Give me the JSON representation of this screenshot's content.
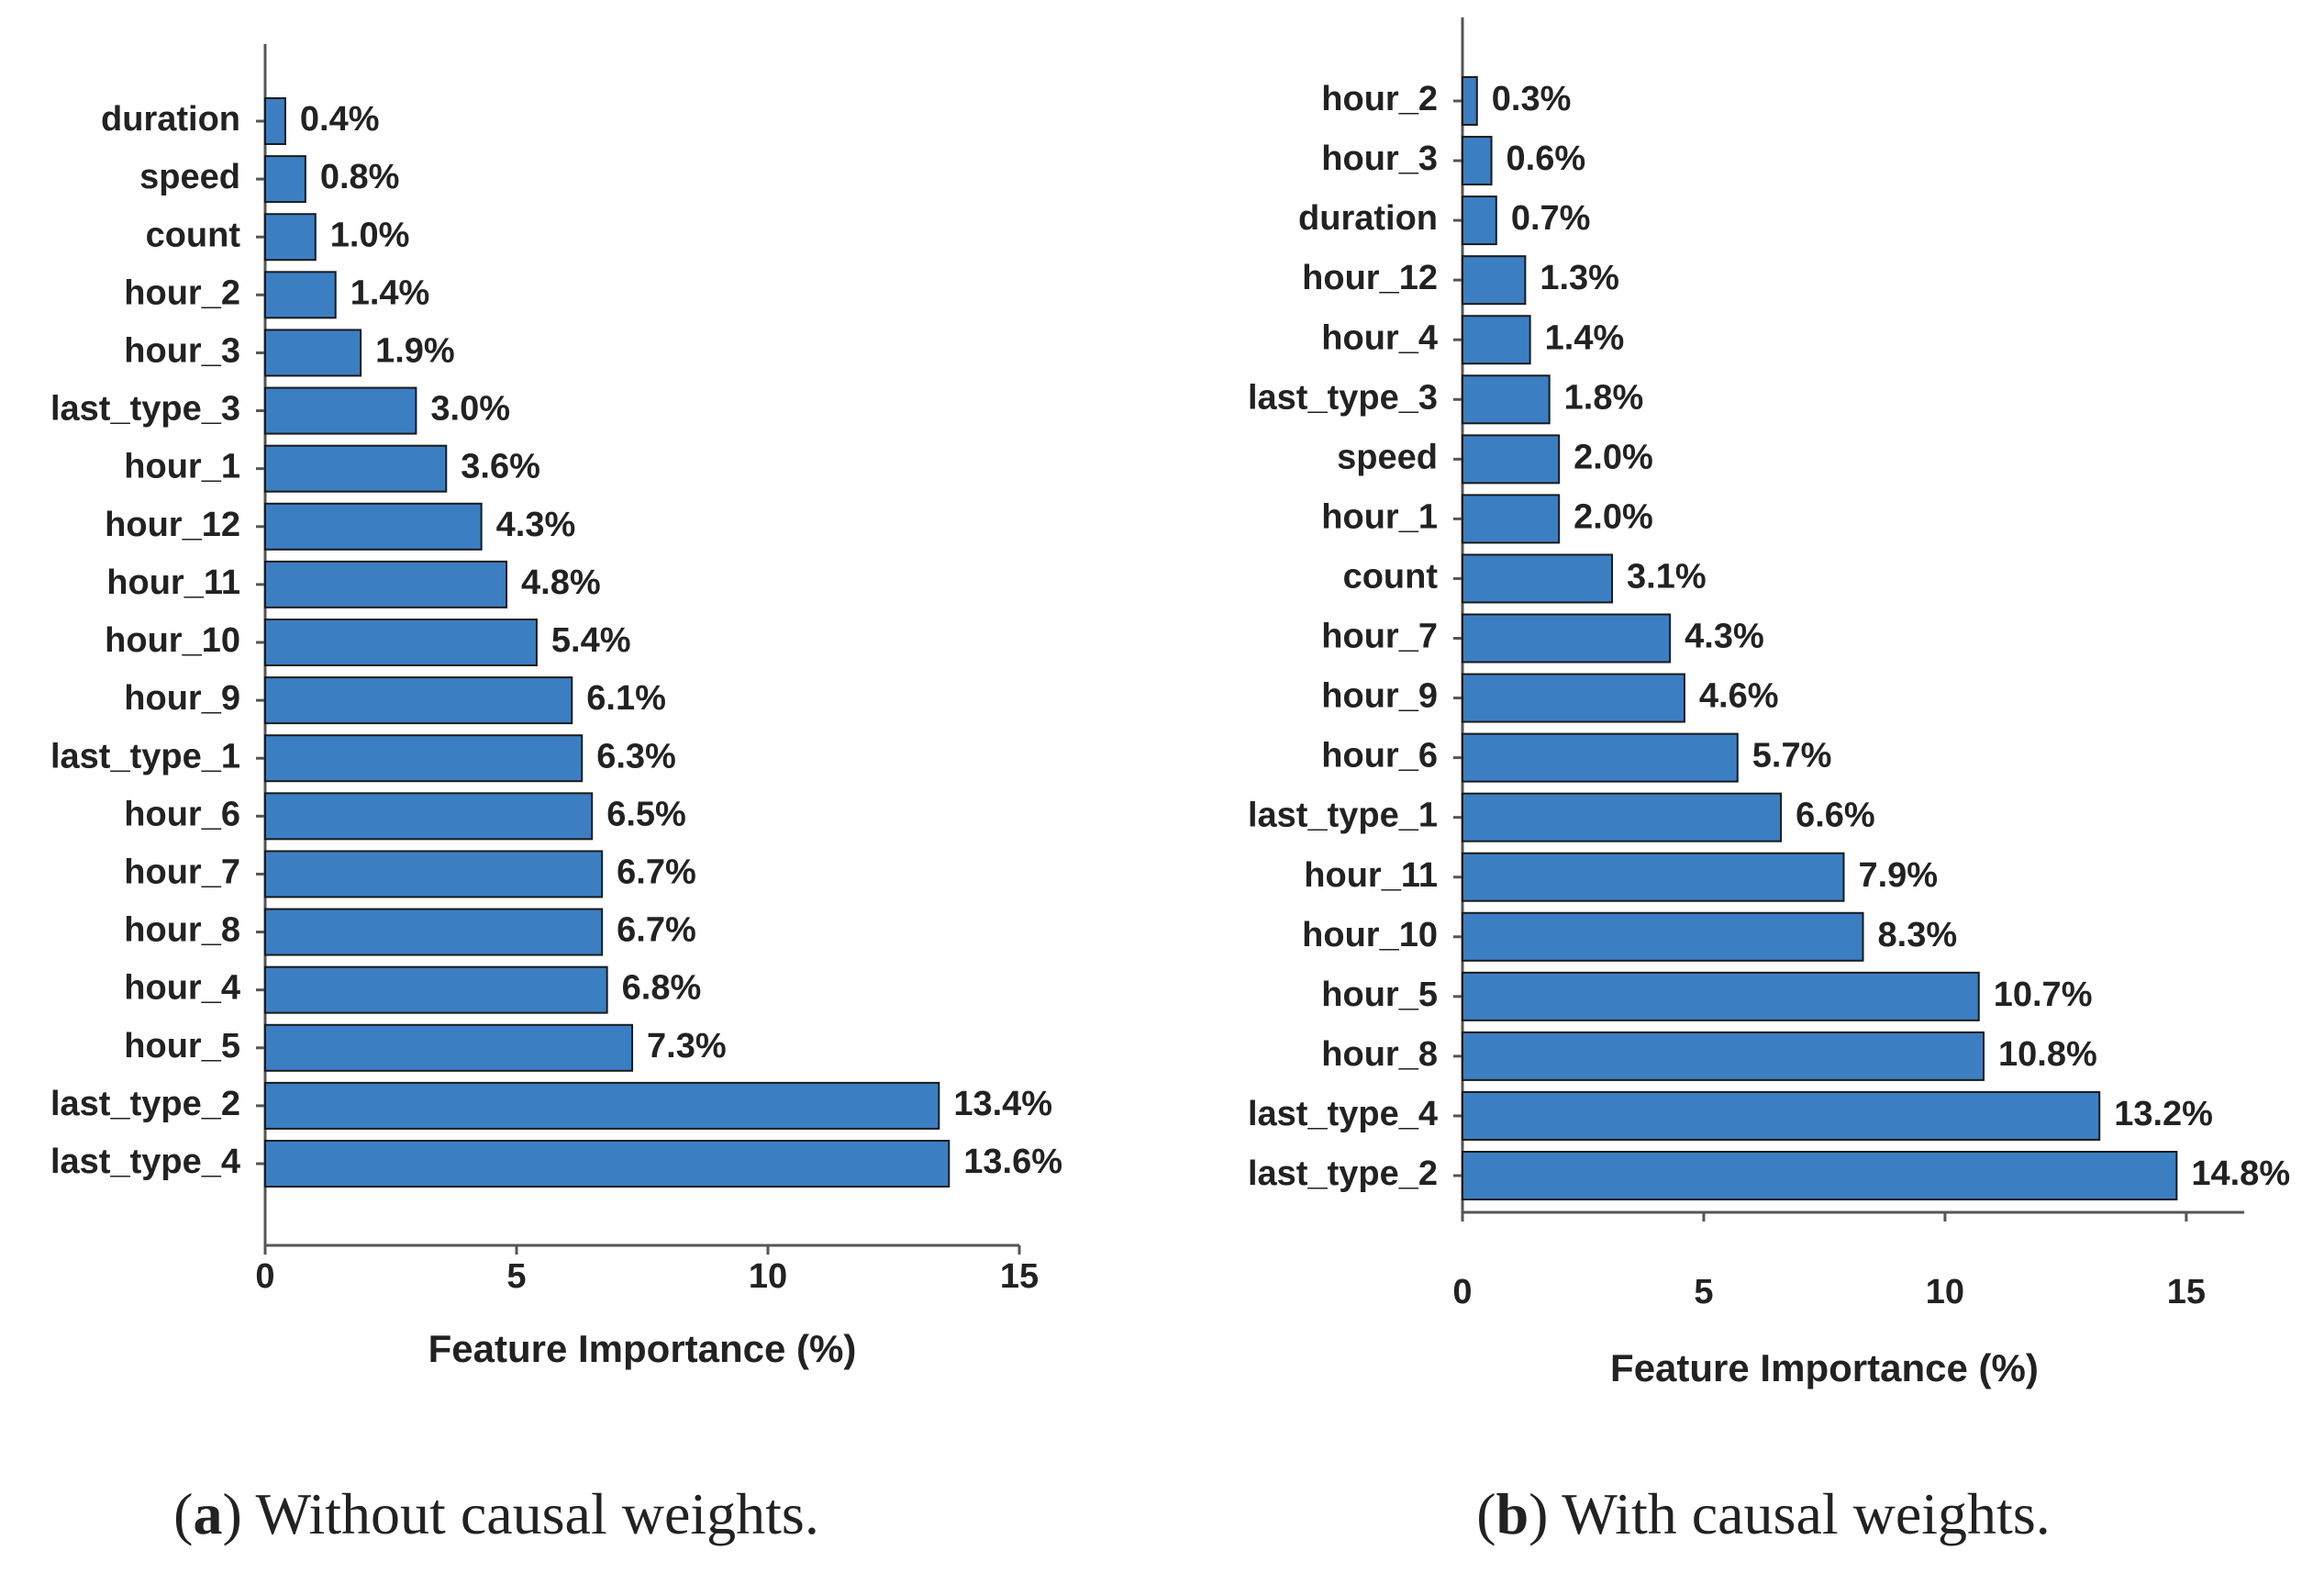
{
  "chart_data": [
    {
      "type": "barh",
      "caption": "(a) Without causal weights.",
      "xlabel": "Feature Importance (%)",
      "categories": [
        "duration",
        "speed",
        "count",
        "hour_2",
        "hour_3",
        "last_type_3",
        "hour_1",
        "hour_12",
        "hour_11",
        "hour_10",
        "hour_9",
        "last_type_1",
        "hour_6",
        "hour_7",
        "hour_8",
        "hour_4",
        "hour_5",
        "last_type_2",
        "last_type_4"
      ],
      "values": [
        0.4,
        0.8,
        1.0,
        1.4,
        1.9,
        3.0,
        3.6,
        4.3,
        4.8,
        5.4,
        6.1,
        6.3,
        6.5,
        6.7,
        6.7,
        6.8,
        7.3,
        13.4,
        13.6
      ],
      "value_labels": [
        "0.4%",
        "0.8%",
        "1.0%",
        "1.4%",
        "1.9%",
        "3.0%",
        "3.6%",
        "4.3%",
        "4.8%",
        "5.4%",
        "6.1%",
        "6.3%",
        "6.5%",
        "6.7%",
        "6.7%",
        "6.8%",
        "7.3%",
        "13.4%",
        "13.6%"
      ],
      "color": "#3b7fc2",
      "xlim": [
        0,
        15
      ],
      "xticks": [
        0,
        5,
        10,
        15
      ]
    },
    {
      "type": "barh",
      "caption": "(b) With causal weights.",
      "xlabel": "Feature Importance (%)",
      "categories": [
        "hour_2",
        "hour_3",
        "duration",
        "hour_12",
        "hour_4",
        "last_type_3",
        "speed",
        "hour_1",
        "count",
        "hour_7",
        "hour_9",
        "hour_6",
        "last_type_1",
        "hour_11",
        "hour_10",
        "hour_5",
        "hour_8",
        "last_type_4",
        "last_type_2"
      ],
      "values": [
        0.3,
        0.6,
        0.7,
        1.3,
        1.4,
        1.8,
        2.0,
        2.0,
        3.1,
        4.3,
        4.6,
        5.7,
        6.6,
        7.9,
        8.3,
        10.7,
        10.8,
        13.2,
        14.8
      ],
      "value_labels": [
        "0.3%",
        "0.6%",
        "0.7%",
        "1.3%",
        "1.4%",
        "1.8%",
        "2.0%",
        "2.0%",
        "3.1%",
        "4.3%",
        "4.6%",
        "5.7%",
        "6.6%",
        "7.9%",
        "8.3%",
        "10.7%",
        "10.8%",
        "13.2%",
        "14.8%"
      ],
      "color": "#3b7fc2",
      "xlim": [
        0,
        16.2
      ],
      "xticks": [
        0,
        5,
        10,
        15
      ]
    }
  ]
}
